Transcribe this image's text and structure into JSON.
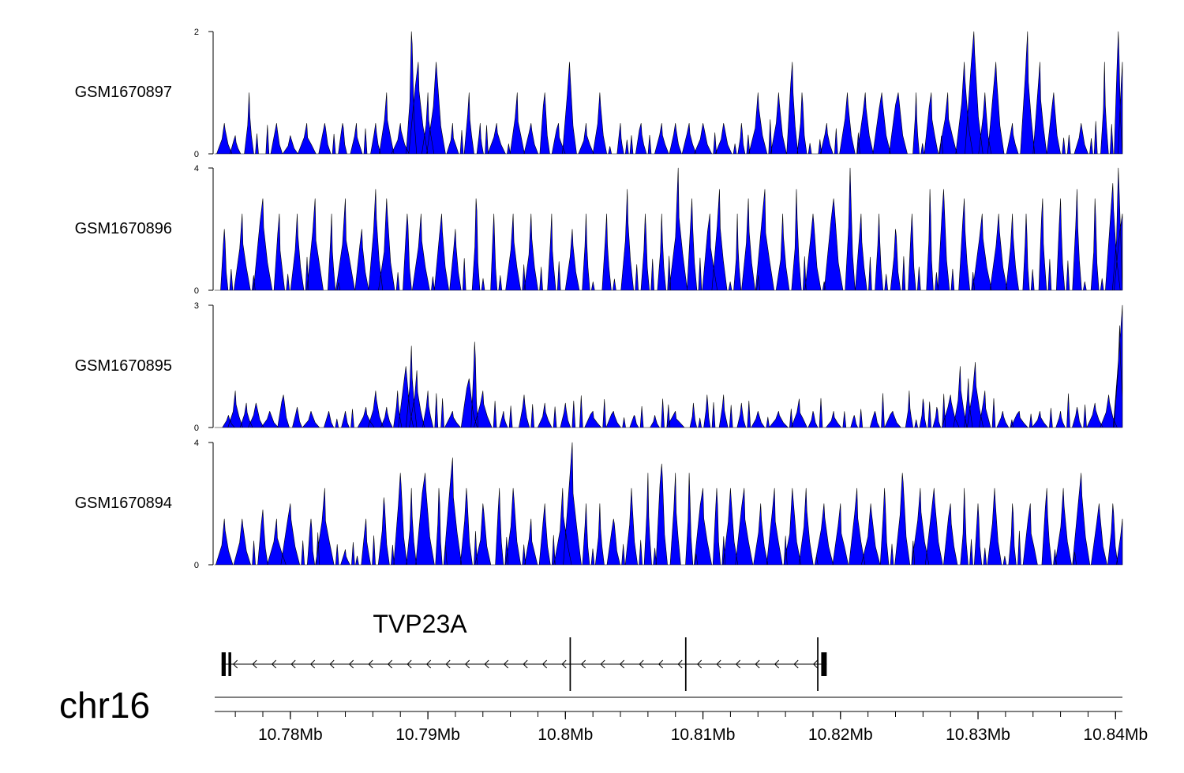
{
  "chart_data": {
    "type": "area",
    "title": "",
    "colors": {
      "signal": "#0000ff",
      "outline": "#000000",
      "axis": "#000000"
    },
    "genomic_axis": {
      "chromosome": "chr16",
      "xlim_mb": [
        10.7745,
        10.8405
      ],
      "ticks_mb": [
        10.78,
        10.79,
        10.8,
        10.81,
        10.82,
        10.83,
        10.84
      ],
      "tick_labels": [
        "10.78Mb",
        "10.79Mb",
        "10.8Mb",
        "10.81Mb",
        "10.82Mb",
        "10.83Mb",
        "10.84Mb"
      ]
    },
    "tracks": [
      {
        "name": "GSM1670897",
        "ylim": [
          0,
          2
        ],
        "ytick_labels": [
          "0",
          "2"
        ],
        "peaks": [
          [
            10.7752,
            0.5
          ],
          [
            10.776,
            0.3
          ],
          [
            10.777,
            1.0
          ],
          [
            10.779,
            0.5
          ],
          [
            10.78,
            0.3
          ],
          [
            10.7812,
            0.5
          ],
          [
            10.7825,
            0.5
          ],
          [
            10.7838,
            0.5
          ],
          [
            10.7848,
            0.5
          ],
          [
            10.7862,
            0.5
          ],
          [
            10.787,
            1.0
          ],
          [
            10.788,
            0.5
          ],
          [
            10.7888,
            2.0
          ],
          [
            10.7893,
            1.5
          ],
          [
            10.79,
            1.0
          ],
          [
            10.7906,
            1.5
          ],
          [
            10.7918,
            0.5
          ],
          [
            10.793,
            1.0
          ],
          [
            10.7938,
            0.5
          ],
          [
            10.795,
            0.5
          ],
          [
            10.7965,
            1.0
          ],
          [
            10.7975,
            0.5
          ],
          [
            10.7985,
            1.0
          ],
          [
            10.7995,
            0.5
          ],
          [
            10.8003,
            1.5
          ],
          [
            10.8015,
            0.5
          ],
          [
            10.8025,
            1.0
          ],
          [
            10.804,
            0.5
          ],
          [
            10.8055,
            0.5
          ],
          [
            10.807,
            0.5
          ],
          [
            10.808,
            0.5
          ],
          [
            10.809,
            0.5
          ],
          [
            10.81,
            0.5
          ],
          [
            10.8115,
            0.5
          ],
          [
            10.8128,
            0.5
          ],
          [
            10.814,
            1.0
          ],
          [
            10.8155,
            1.0
          ],
          [
            10.8165,
            1.5
          ],
          [
            10.8172,
            1.0
          ],
          [
            10.819,
            0.5
          ],
          [
            10.8205,
            1.0
          ],
          [
            10.8218,
            1.0
          ],
          [
            10.823,
            1.0
          ],
          [
            10.8242,
            1.0
          ],
          [
            10.8255,
            1.0
          ],
          [
            10.8266,
            1.0
          ],
          [
            10.8278,
            1.0
          ],
          [
            10.829,
            1.5
          ],
          [
            10.8297,
            2.0
          ],
          [
            10.8305,
            1.0
          ],
          [
            10.8313,
            1.5
          ],
          [
            10.8325,
            0.5
          ],
          [
            10.8336,
            2.0
          ],
          [
            10.8345,
            1.5
          ],
          [
            10.8355,
            1.0
          ],
          [
            10.8375,
            0.5
          ],
          [
            10.8392,
            1.5
          ],
          [
            10.8402,
            2.0
          ],
          [
            10.8405,
            1.5
          ]
        ]
      },
      {
        "name": "GSM1670896",
        "ylim": [
          0,
          4
        ],
        "ytick_labels": [
          "0",
          "4"
        ],
        "peaks": [
          [
            10.7752,
            2.0
          ],
          [
            10.7765,
            2.5
          ],
          [
            10.778,
            3.0
          ],
          [
            10.7792,
            2.5
          ],
          [
            10.7805,
            2.5
          ],
          [
            10.7818,
            3.0
          ],
          [
            10.783,
            2.5
          ],
          [
            10.784,
            3.0
          ],
          [
            10.7852,
            2.0
          ],
          [
            10.7862,
            3.3
          ],
          [
            10.787,
            3.0
          ],
          [
            10.7885,
            2.5
          ],
          [
            10.7895,
            2.5
          ],
          [
            10.791,
            2.5
          ],
          [
            10.792,
            2.0
          ],
          [
            10.7935,
            3.0
          ],
          [
            10.7948,
            2.5
          ],
          [
            10.7962,
            2.5
          ],
          [
            10.7975,
            2.5
          ],
          [
            10.799,
            2.5
          ],
          [
            10.8005,
            2.0
          ],
          [
            10.8015,
            2.5
          ],
          [
            10.803,
            2.5
          ],
          [
            10.8045,
            3.3
          ],
          [
            10.8058,
            2.5
          ],
          [
            10.807,
            2.5
          ],
          [
            10.8082,
            4.0
          ],
          [
            10.8092,
            3.0
          ],
          [
            10.8105,
            2.5
          ],
          [
            10.8112,
            3.3
          ],
          [
            10.8125,
            2.5
          ],
          [
            10.8133,
            3.0
          ],
          [
            10.8145,
            3.3
          ],
          [
            10.8158,
            2.5
          ],
          [
            10.8168,
            3.3
          ],
          [
            10.818,
            2.5
          ],
          [
            10.8195,
            3.0
          ],
          [
            10.8207,
            4.0
          ],
          [
            10.8215,
            2.5
          ],
          [
            10.8228,
            2.5
          ],
          [
            10.824,
            2.0
          ],
          [
            10.8252,
            2.5
          ],
          [
            10.8265,
            3.3
          ],
          [
            10.8275,
            3.3
          ],
          [
            10.829,
            3.0
          ],
          [
            10.8303,
            2.5
          ],
          [
            10.8315,
            2.5
          ],
          [
            10.8325,
            2.5
          ],
          [
            10.8335,
            2.5
          ],
          [
            10.8347,
            3.0
          ],
          [
            10.836,
            3.0
          ],
          [
            10.8372,
            3.3
          ],
          [
            10.8385,
            3.0
          ],
          [
            10.8398,
            3.5
          ],
          [
            10.8402,
            4.0
          ],
          [
            10.8405,
            2.5
          ]
        ]
      },
      {
        "name": "GSM1670895",
        "ylim": [
          0,
          3
        ],
        "ytick_labels": [
          "0",
          "3"
        ],
        "peaks": [
          [
            10.7755,
            0.3
          ],
          [
            10.776,
            0.9
          ],
          [
            10.7768,
            0.6
          ],
          [
            10.7775,
            0.6
          ],
          [
            10.7785,
            0.4
          ],
          [
            10.7795,
            0.8
          ],
          [
            10.7805,
            0.5
          ],
          [
            10.7815,
            0.4
          ],
          [
            10.7828,
            0.4
          ],
          [
            10.784,
            0.4
          ],
          [
            10.7855,
            0.5
          ],
          [
            10.7862,
            0.9
          ],
          [
            10.787,
            0.5
          ],
          [
            10.7878,
            0.9
          ],
          [
            10.7884,
            1.5
          ],
          [
            10.7888,
            2.0
          ],
          [
            10.7892,
            1.4
          ],
          [
            10.79,
            0.9
          ],
          [
            10.7918,
            0.4
          ],
          [
            10.793,
            1.2
          ],
          [
            10.7934,
            2.1
          ],
          [
            10.794,
            0.9
          ],
          [
            10.7955,
            0.4
          ],
          [
            10.797,
            0.8
          ],
          [
            10.7985,
            0.6
          ],
          [
            10.8,
            0.6
          ],
          [
            10.802,
            0.4
          ],
          [
            10.8035,
            0.4
          ],
          [
            10.805,
            0.3
          ],
          [
            10.8065,
            0.3
          ],
          [
            10.808,
            0.4
          ],
          [
            10.8093,
            0.6
          ],
          [
            10.8103,
            0.8
          ],
          [
            10.8115,
            0.8
          ],
          [
            10.8128,
            0.6
          ],
          [
            10.814,
            0.4
          ],
          [
            10.8155,
            0.4
          ],
          [
            10.817,
            0.7
          ],
          [
            10.818,
            0.4
          ],
          [
            10.8195,
            0.4
          ],
          [
            10.821,
            0.3
          ],
          [
            10.8225,
            0.4
          ],
          [
            10.8238,
            0.4
          ],
          [
            10.825,
            0.9
          ],
          [
            10.826,
            0.7
          ],
          [
            10.827,
            0.5
          ],
          [
            10.828,
            0.8
          ],
          [
            10.8287,
            1.5
          ],
          [
            10.8293,
            1.2
          ],
          [
            10.8298,
            1.6
          ],
          [
            10.8305,
            0.9
          ],
          [
            10.8318,
            0.4
          ],
          [
            10.833,
            0.4
          ],
          [
            10.8345,
            0.4
          ],
          [
            10.836,
            0.4
          ],
          [
            10.8372,
            0.5
          ],
          [
            10.8385,
            0.6
          ],
          [
            10.8395,
            0.8
          ],
          [
            10.8403,
            2.5
          ],
          [
            10.8405,
            3.0
          ]
        ]
      },
      {
        "name": "GSM1670894",
        "ylim": [
          0,
          4
        ],
        "ytick_labels": [
          "0",
          "4"
        ],
        "peaks": [
          [
            10.7752,
            1.5
          ],
          [
            10.7765,
            1.5
          ],
          [
            10.778,
            1.8
          ],
          [
            10.779,
            1.5
          ],
          [
            10.78,
            2.0
          ],
          [
            10.7815,
            1.5
          ],
          [
            10.7825,
            2.5
          ],
          [
            10.784,
            0.5
          ],
          [
            10.7855,
            1.5
          ],
          [
            10.7868,
            2.2
          ],
          [
            10.788,
            3.0
          ],
          [
            10.7888,
            2.5
          ],
          [
            10.7898,
            3.0
          ],
          [
            10.7908,
            2.5
          ],
          [
            10.7918,
            3.5
          ],
          [
            10.7928,
            2.5
          ],
          [
            10.794,
            2.0
          ],
          [
            10.7952,
            2.5
          ],
          [
            10.7962,
            2.5
          ],
          [
            10.7975,
            1.5
          ],
          [
            10.7985,
            2.0
          ],
          [
            10.7998,
            2.5
          ],
          [
            10.8005,
            4.0
          ],
          [
            10.8015,
            2.0
          ],
          [
            10.8025,
            2.0
          ],
          [
            10.8035,
            1.5
          ],
          [
            10.8048,
            2.5
          ],
          [
            10.806,
            3.0
          ],
          [
            10.807,
            3.3
          ],
          [
            10.808,
            3.0
          ],
          [
            10.809,
            3.0
          ],
          [
            10.81,
            2.5
          ],
          [
            10.811,
            2.5
          ],
          [
            10.812,
            2.5
          ],
          [
            10.813,
            2.5
          ],
          [
            10.8142,
            2.0
          ],
          [
            10.8152,
            2.5
          ],
          [
            10.8165,
            2.5
          ],
          [
            10.8175,
            2.5
          ],
          [
            10.8188,
            2.0
          ],
          [
            10.82,
            2.0
          ],
          [
            10.8212,
            2.5
          ],
          [
            10.8222,
            2.0
          ],
          [
            10.8232,
            2.5
          ],
          [
            10.8245,
            3.0
          ],
          [
            10.8258,
            2.5
          ],
          [
            10.8268,
            2.5
          ],
          [
            10.828,
            2.0
          ],
          [
            10.829,
            2.5
          ],
          [
            10.83,
            2.0
          ],
          [
            10.8312,
            2.5
          ],
          [
            10.8325,
            2.0
          ],
          [
            10.8338,
            2.0
          ],
          [
            10.835,
            2.5
          ],
          [
            10.8362,
            2.5
          ],
          [
            10.8375,
            3.0
          ],
          [
            10.8388,
            2.0
          ],
          [
            10.8398,
            2.0
          ],
          [
            10.8405,
            1.5
          ]
        ]
      }
    ],
    "gene": {
      "name": "TVP23A",
      "strand": "-",
      "start_mb": 10.775,
      "end_mb": 10.819,
      "exons_mb": [
        [
          10.775,
          10.7753
        ],
        [
          10.7755,
          10.7757
        ],
        [
          10.8003,
          10.8004
        ],
        [
          10.8087,
          10.8088
        ],
        [
          10.8183,
          10.8184
        ],
        [
          10.8186,
          10.819
        ]
      ]
    }
  }
}
